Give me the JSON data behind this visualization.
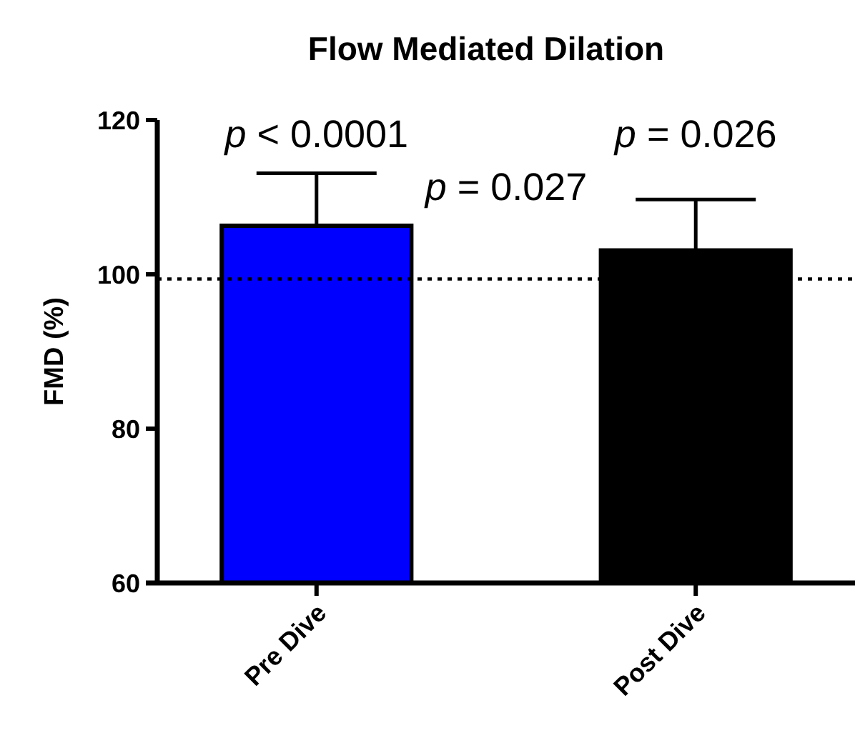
{
  "chart_data": {
    "type": "bar",
    "title": "Flow Mediated Dilation",
    "ylabel": "FMD (%)",
    "categories": [
      "Pre Dive",
      "Post Dive"
    ],
    "values": [
      106.3,
      103.1
    ],
    "colors": [
      "#0000ff",
      "#000000"
    ],
    "errors": [
      [
        106.3,
        113.1
      ],
      [
        103.1,
        109.7
      ]
    ],
    "ylim": [
      60,
      120
    ],
    "yticks": [
      60,
      80,
      100,
      120
    ],
    "grid": false,
    "ref_lines": [
      {
        "axis": "y",
        "value": 99.4,
        "line_style": "dotted",
        "color": "#000000"
      }
    ],
    "annotations": [
      "p < 0.0001",
      "p = 0.027",
      "p = 0.026"
    ]
  }
}
